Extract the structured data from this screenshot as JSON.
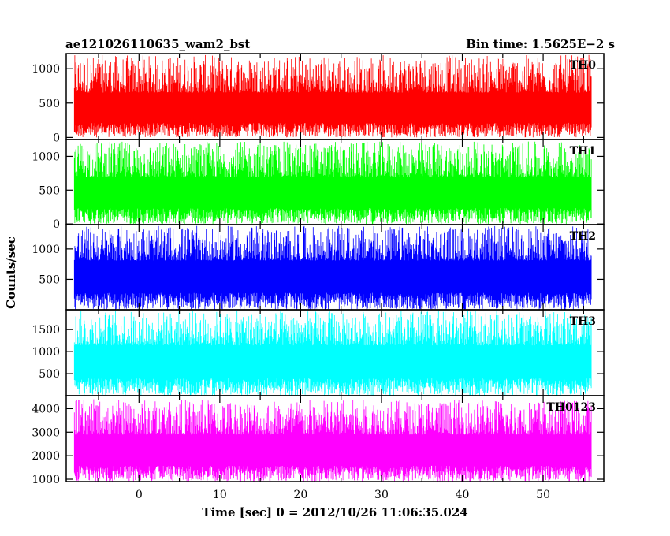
{
  "header": {
    "title": "ae121026110635_wam2_bst",
    "bin_time": "Bin time: 1.5625E−2 s"
  },
  "axes": {
    "ylabel": "Counts/sec",
    "xlabel": "Time [sec] 0 = 2012/10/26 11:06:35.024"
  },
  "chart_data": {
    "type": "line",
    "title": "ae121026110635_wam2_bst",
    "xlabel": "Time [sec] 0 = 2012/10/26 11:06:35.024",
    "ylabel": "Counts/sec",
    "xlim": [
      -9,
      57.5
    ],
    "x_ticks": [
      0,
      10,
      20,
      30,
      40,
      50
    ],
    "x_range_data": [
      -8,
      56
    ],
    "bin_time": 0.015625,
    "series": [
      {
        "name": "TH0",
        "color": "#ff0000",
        "ylim": [
          -30,
          1220
        ],
        "y_ticks": [
          0,
          500,
          1000
        ],
        "baseline": 470,
        "noise_min": 0,
        "noise_max": 1200
      },
      {
        "name": "TH1",
        "color": "#00ff00",
        "ylim": [
          -10,
          1250
        ],
        "y_ticks": [
          0,
          500,
          1000
        ],
        "baseline": 520,
        "noise_min": 0,
        "noise_max": 1220
      },
      {
        "name": "TH2",
        "color": "#0000ff",
        "ylim": [
          0,
          1400
        ],
        "y_ticks": [
          500,
          1000
        ],
        "baseline": 620,
        "noise_min": 0,
        "noise_max": 1380
      },
      {
        "name": "TH3",
        "color": "#00ffff",
        "ylim": [
          0,
          1950
        ],
        "y_ticks": [
          500,
          1000,
          1500
        ],
        "baseline": 880,
        "noise_min": 0,
        "noise_max": 1930
      },
      {
        "name": "TH0123",
        "color": "#ff00ff",
        "ylim": [
          900,
          4550
        ],
        "y_ticks": [
          1000,
          2000,
          3000,
          4000
        ],
        "baseline": 2400,
        "noise_min": 900,
        "noise_max": 4400
      }
    ]
  }
}
